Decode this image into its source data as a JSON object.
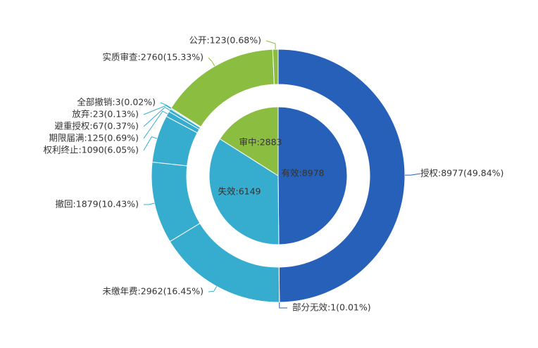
{
  "chart_data": {
    "type": "pie",
    "subtype": "nested-donut",
    "colors": {
      "valid": "#2660B8",
      "invalid": "#36ADCF",
      "pending": "#8BBE40"
    },
    "inner": {
      "slices": [
        {
          "name": "有效",
          "value": 8978,
          "label": "有效:8978",
          "group": "valid"
        },
        {
          "name": "失效",
          "value": 6149,
          "label": "失效:6149",
          "group": "invalid"
        },
        {
          "name": "审中",
          "value": 2883,
          "label": "审中:2883",
          "group": "pending"
        }
      ]
    },
    "outer": {
      "slices": [
        {
          "name": "授权",
          "value": 8977,
          "percent": "49.84%",
          "label": "授权:8977(49.84%)",
          "group": "valid"
        },
        {
          "name": "部分无效",
          "value": 1,
          "percent": "0.01%",
          "label": "部分无效:1(0.01%)",
          "group": "valid"
        },
        {
          "name": "未缴年费",
          "value": 2962,
          "percent": "16.45%",
          "label": "未缴年费:2962(16.45%)",
          "group": "invalid"
        },
        {
          "name": "撤回",
          "value": 1879,
          "percent": "10.43%",
          "label": "撤回:1879(10.43%)",
          "group": "invalid"
        },
        {
          "name": "权利终止",
          "value": 1090,
          "percent": "6.05%",
          "label": "权利终止:1090(6.05%)",
          "group": "invalid"
        },
        {
          "name": "期限届满",
          "value": 125,
          "percent": "0.69%",
          "label": "期限届满:125(0.69%)",
          "group": "invalid"
        },
        {
          "name": "避重授权",
          "value": 67,
          "percent": "0.37%",
          "label": "避重授权:67(0.37%)",
          "group": "invalid"
        },
        {
          "name": "放弃",
          "value": 23,
          "percent": "0.13%",
          "label": "放弃:23(0.13%)",
          "group": "invalid"
        },
        {
          "name": "全部撤销",
          "value": 3,
          "percent": "0.02%",
          "label": "全部撤销:3(0.02%)",
          "group": "invalid"
        },
        {
          "name": "实质审查",
          "value": 2760,
          "percent": "15.33%",
          "label": "实质审查:2760(15.33%)",
          "group": "pending"
        },
        {
          "name": "公开",
          "value": 123,
          "percent": "0.68%",
          "label": "公开:123(0.68%)",
          "group": "pending"
        }
      ]
    }
  }
}
